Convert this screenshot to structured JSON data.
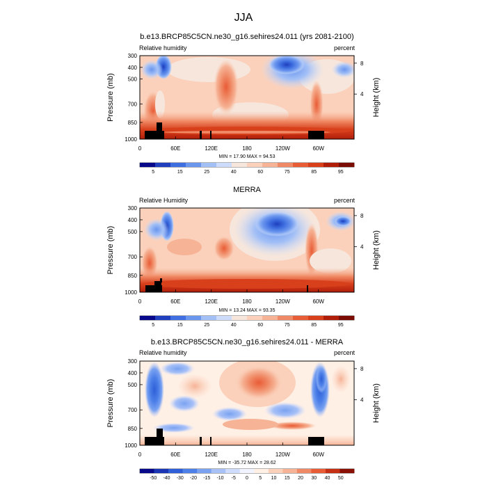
{
  "main_title": "JJA",
  "panels": [
    {
      "title": "b.e13.BRCP85C5CN.ne30_g16.sehires24.011 (yrs 2081-2100)",
      "left_label": "Relative humidity",
      "right_label": "percent",
      "stats": "MIN = 17.90 MAX = 94.53",
      "colorbar_labels": [
        "5",
        "15",
        "25",
        "40",
        "60",
        "75",
        "85",
        "95"
      ],
      "palette": "full"
    },
    {
      "title": "MERRA",
      "left_label": "Relative Humidity",
      "right_label": "percent",
      "stats": "MIN = 13.24 MAX = 93.35",
      "colorbar_labels": [
        "5",
        "15",
        "25",
        "40",
        "60",
        "75",
        "85",
        "95"
      ],
      "palette": "full"
    },
    {
      "title": "b.e13.BRCP85C5CN.ne30_g16.sehires24.011 - MERRA",
      "left_label": "Relative humidity",
      "right_label": "percent",
      "stats": "MIN = -35.72 MAX = 28.62",
      "colorbar_labels": [
        "-50",
        "-40",
        "-30",
        "-20",
        "-15",
        "-10",
        "-5",
        "0",
        "5",
        "10",
        "15",
        "20",
        "30",
        "40",
        "50"
      ],
      "palette": "diff"
    }
  ],
  "chart_data": [
    {
      "type": "heatmap",
      "title": "b.e13.BRCP85C5CN.ne30_g16.sehires24.011 (yrs 2081-2100)",
      "subtitle_left": "Relative humidity",
      "subtitle_right": "percent",
      "xlabel": "",
      "ylabel": "Pressure (mb)",
      "ylabel_right": "Height (km)",
      "x_ticks": [
        "0",
        "60E",
        "120E",
        "180",
        "120W",
        "60W"
      ],
      "y_ticks": [
        "300",
        "400",
        "500",
        "700",
        "850",
        "1000"
      ],
      "y_right_ticks": [
        "4",
        "8"
      ],
      "min": 17.9,
      "max": 94.53,
      "colorbar_levels": [
        "5",
        "15",
        "25",
        "40",
        "60",
        "75",
        "85",
        "95"
      ]
    },
    {
      "type": "heatmap",
      "title": "MERRA",
      "subtitle_left": "Relative Humidity",
      "subtitle_right": "percent",
      "xlabel": "",
      "ylabel": "Pressure (mb)",
      "ylabel_right": "Height (km)",
      "x_ticks": [
        "0",
        "60E",
        "120E",
        "180",
        "120W",
        "60W"
      ],
      "y_ticks": [
        "300",
        "400",
        "500",
        "700",
        "850",
        "1000"
      ],
      "y_right_ticks": [
        "4",
        "8"
      ],
      "min": 13.24,
      "max": 93.35,
      "colorbar_levels": [
        "5",
        "15",
        "25",
        "40",
        "60",
        "75",
        "85",
        "95"
      ]
    },
    {
      "type": "heatmap",
      "title": "b.e13.BRCP85C5CN.ne30_g16.sehires24.011 - MERRA",
      "subtitle_left": "Relative humidity",
      "subtitle_right": "percent",
      "xlabel": "",
      "ylabel": "Pressure (mb)",
      "ylabel_right": "Height (km)",
      "x_ticks": [
        "0",
        "60E",
        "120E",
        "180",
        "120W",
        "60W"
      ],
      "y_ticks": [
        "300",
        "400",
        "500",
        "700",
        "850",
        "1000"
      ],
      "y_right_ticks": [
        "4",
        "8"
      ],
      "min": -35.72,
      "max": 28.62,
      "colorbar_levels": [
        "-50",
        "-40",
        "-30",
        "-20",
        "-15",
        "-10",
        "-5",
        "0",
        "5",
        "10",
        "15",
        "20",
        "30",
        "40",
        "50"
      ]
    }
  ],
  "axes": {
    "y_label": "Pressure (mb)",
    "y_right_label": "Height (km)",
    "y_ticks": [
      "300",
      "400",
      "500",
      "700",
      "850",
      "1000"
    ],
    "y_right_ticks": [
      "8",
      "4"
    ],
    "x_ticks": [
      "0",
      "60E",
      "120E",
      "180",
      "120W",
      "60W"
    ]
  },
  "colors": {
    "full": [
      "#08088a",
      "#1f3fbf",
      "#3f6fe0",
      "#6b96ee",
      "#a2bff6",
      "#cddcfb",
      "#f6e6dc",
      "#fbd1bb",
      "#f6b396",
      "#f08a66",
      "#e85c36",
      "#d8401c",
      "#b01e0a",
      "#7a0c04"
    ],
    "diff": [
      "#08088a",
      "#1a36b5",
      "#2f5fd8",
      "#4d80e8",
      "#7aa2f1",
      "#a8c1f7",
      "#d0dcfb",
      "#f1f3ff",
      "#fff0e6",
      "#fbd1bb",
      "#f6b396",
      "#f08a66",
      "#e85c36",
      "#c52f14",
      "#8a0f05"
    ],
    "land": "#000000"
  }
}
